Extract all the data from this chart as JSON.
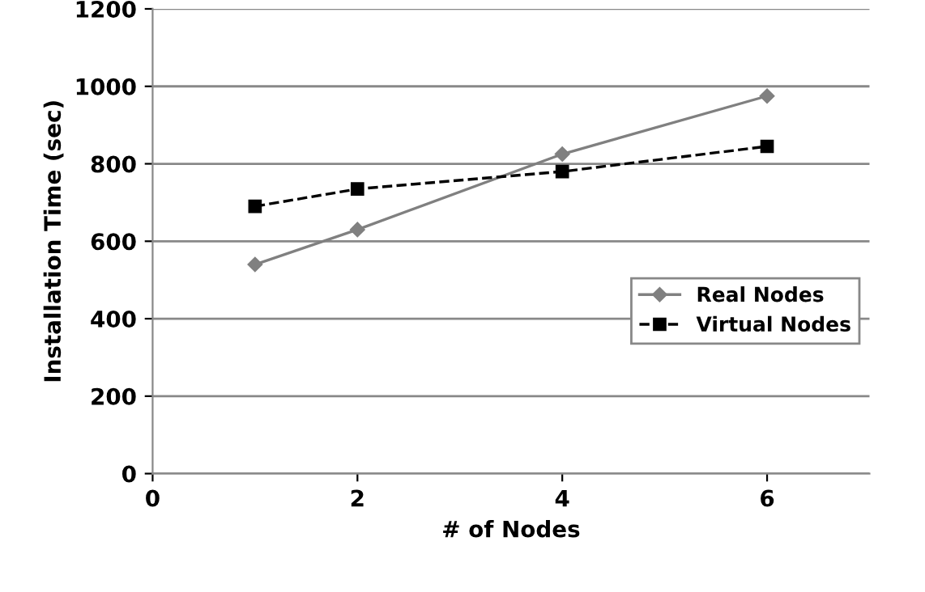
{
  "chart_data": {
    "type": "line",
    "xlabel": "# of Nodes",
    "ylabel": "Installation Time (sec)",
    "x": [
      1,
      2,
      4,
      6
    ],
    "series": [
      {
        "name": "Real Nodes",
        "color": "#808080",
        "values": [
          540,
          630,
          825,
          975
        ],
        "marker": "diamond",
        "line_style": "solid"
      },
      {
        "name": "Virtual Nodes",
        "color": "#000000",
        "values": [
          690,
          735,
          780,
          845
        ],
        "marker": "square",
        "line_style": "dashed"
      }
    ],
    "xlim": [
      0,
      7
    ],
    "xticks": [
      0,
      2,
      4,
      6
    ],
    "ylim": [
      0,
      1200
    ],
    "yticks": [
      0,
      200,
      400,
      600,
      800,
      1000,
      1200
    ],
    "grid": "y",
    "legend": "center right"
  }
}
